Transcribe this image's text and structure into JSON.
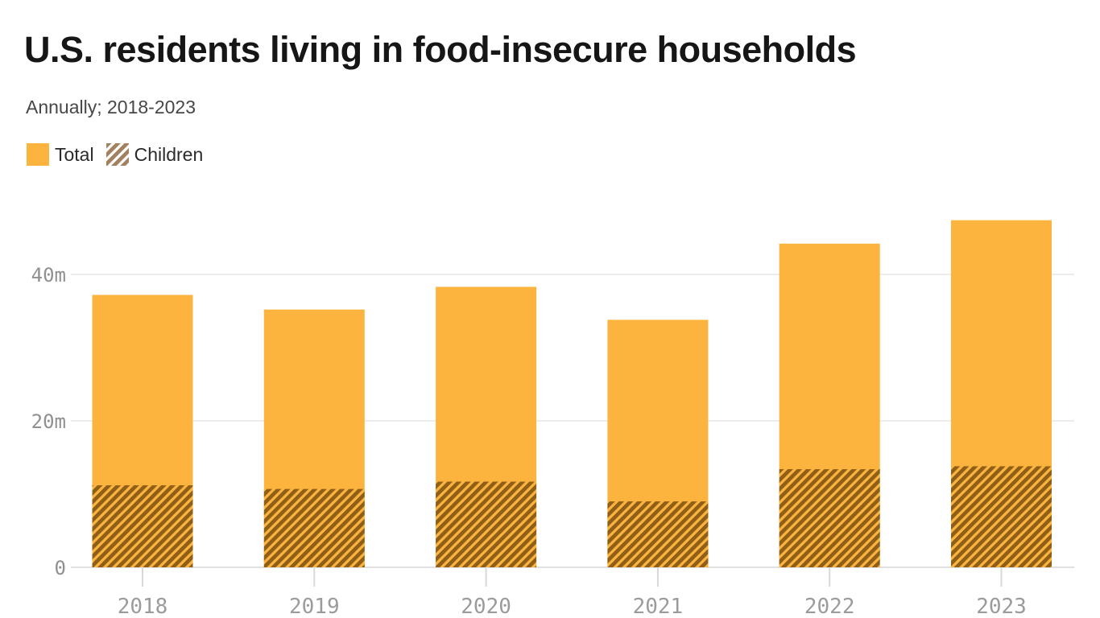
{
  "header": {
    "title": "U.S. residents living in food-insecure households",
    "subtitle": "Annually; 2018-2023"
  },
  "legend": [
    {
      "label": "Total",
      "swatch": "solid"
    },
    {
      "label": "Children",
      "swatch": "hatched"
    }
  ],
  "colors": {
    "bar": "#FCB43E",
    "bar_hatch_stripe": "#8F5E17",
    "legend_hatch_stripe": "#A3805F",
    "legend_hatch_bg": "#ffffff",
    "title": "#161616",
    "subtitle": "#474747",
    "y_axis_label": "#909090",
    "x_axis_label": "#9b9b9b",
    "gridline": "#ececec",
    "baseline": "#e1e1e1",
    "tick": "#d8d8d8"
  },
  "chart_data": {
    "type": "bar",
    "title": "U.S. residents living in food-insecure households",
    "subtitle": "Annually; 2018-2023",
    "unit": "millions of people",
    "categories": [
      "2018",
      "2019",
      "2020",
      "2021",
      "2022",
      "2023"
    ],
    "series": [
      {
        "name": "Total",
        "style": "solid",
        "values": [
          37.2,
          35.2,
          38.3,
          33.8,
          44.2,
          47.4
        ]
      },
      {
        "name": "Children",
        "style": "hatched",
        "values": [
          11.2,
          10.7,
          11.7,
          9.0,
          13.4,
          13.8
        ]
      }
    ],
    "series_note": "Children bars are drawn overlaid on Total bars from zero (not stacked addition)",
    "xlabel": "",
    "ylabel": "",
    "ylim": [
      0,
      48.5
    ],
    "y_ticks": [
      {
        "value": 0,
        "label": "0"
      },
      {
        "value": 20,
        "label": "20m"
      },
      {
        "value": 40,
        "label": "40m"
      }
    ],
    "grid": "horizontal",
    "legend_position": "top-left"
  }
}
